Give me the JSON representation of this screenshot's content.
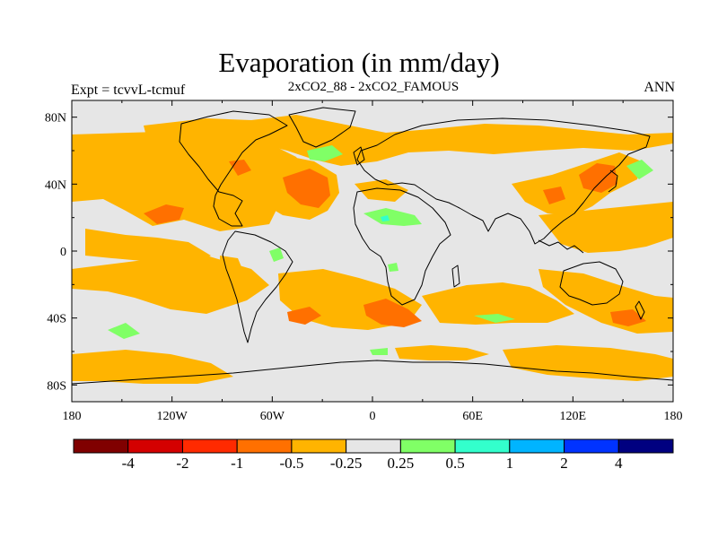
{
  "title": "Evaporation (in mm/day)",
  "subtitle": "2xCO2_88 - 2xCO2_FAMOUS",
  "experiment": "Expt = tcvvL-tcmuf",
  "season": "ANN",
  "lat_ticks": [
    "80N",
    "40N",
    "0",
    "40S",
    "80S"
  ],
  "lon_ticks": [
    "180",
    "120W",
    "60W",
    "0",
    "60E",
    "120E",
    "180"
  ],
  "colorbar": {
    "colors": [
      "#800000",
      "#d40000",
      "#ff2a00",
      "#ff7000",
      "#ffb400",
      "#e6e6e6",
      "#80ff66",
      "#33ffcc",
      "#00b4ff",
      "#0033ff",
      "#000080"
    ],
    "labels": [
      "-4",
      "-2",
      "-1",
      "-0.5",
      "-0.25",
      "0.25",
      "0.5",
      "1",
      "2",
      "4"
    ]
  },
  "colors": {
    "neutral": "#e6e6e6",
    "decrease_light": "#ffb400",
    "decrease_medium": "#ff7000",
    "increase_light": "#80ff66",
    "increase_medium": "#33ffcc"
  }
}
